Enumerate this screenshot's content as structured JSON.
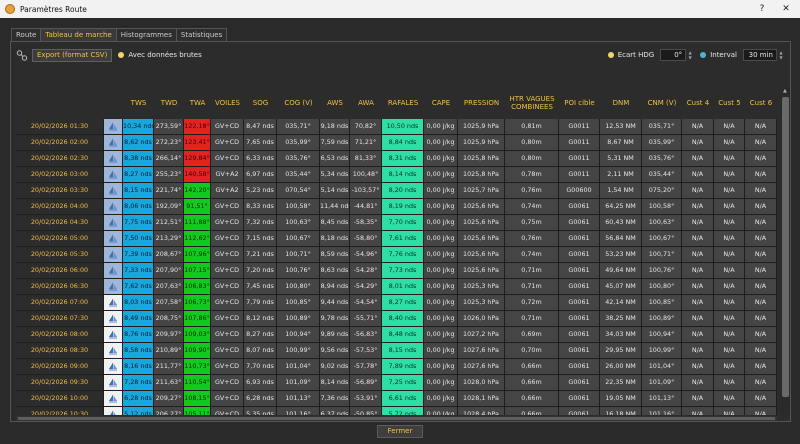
{
  "window": {
    "title": "Paramètres Route",
    "help": "?",
    "close": "✕"
  },
  "tabs": [
    "Route",
    "Tableau de marche",
    "Histogrammes",
    "Statistiques"
  ],
  "toolbar": {
    "export_label": "Export (format CSV)",
    "raw_data_label": "Avec données brutes",
    "ecart_label": "Ecart HDG",
    "ecart_value": "0°",
    "interval_label": "Interval",
    "interval_value": "30 min"
  },
  "columns": [
    "",
    "",
    "TWS",
    "TWD",
    "TWA",
    "VOILES",
    "SOG",
    "COG (V)",
    "AWS",
    "AWA",
    "RAFALES",
    "CAPE",
    "PRESSION",
    "HTR VAGUES\nCOMBINEES",
    "POI cible",
    "DNM",
    "CNM (V)",
    "Cust 4",
    "Cust 5",
    "Cust 6"
  ],
  "rows": [
    {
      "date": "20/02/2026 01:30",
      "tws": "10,34 nds",
      "twd": "273,59°",
      "twa": "122,18°",
      "twa_red": true,
      "voiles": "GV+CD",
      "sog": "8,47 nds",
      "cog": "035,71°",
      "aws": "9,18 nds",
      "awa": "70,82°",
      "raf": "10,50 nds",
      "cape": "0,00 J/kg",
      "pres": "1025,9 hPa",
      "htr": "0,81m",
      "poi": "G0011",
      "dnm": "12,53 NM",
      "cnm": "035,71°",
      "c4": "N/A",
      "c5": "N/A",
      "c6": "N/A",
      "icon_light": false
    },
    {
      "date": "20/02/2026 02:00",
      "tws": "8,62 nds",
      "twd": "272,23°",
      "twa": "123,41°",
      "twa_red": true,
      "voiles": "GV+CD",
      "sog": "7,65 nds",
      "cog": "035,99°",
      "aws": "7,59 nds",
      "awa": "71,21°",
      "raf": "8,84 nds",
      "cape": "0,00 J/kg",
      "pres": "1025,9 hPa",
      "htr": "0,80m",
      "poi": "G0011",
      "dnm": "8,67 NM",
      "cnm": "035,99°",
      "c4": "N/A",
      "c5": "N/A",
      "c6": "N/A",
      "icon_light": false
    },
    {
      "date": "20/02/2026 02:30",
      "tws": "8,38 nds",
      "twd": "266,14°",
      "twa": "129,84°",
      "twa_red": true,
      "voiles": "GV+CD",
      "sog": "6,33 nds",
      "cog": "035,76°",
      "aws": "6,53 nds",
      "awa": "81,33°",
      "raf": "8,31 nds",
      "cape": "0,00 J/kg",
      "pres": "1025,8 hPa",
      "htr": "0,80m",
      "poi": "G0011",
      "dnm": "5,31 NM",
      "cnm": "035,76°",
      "c4": "N/A",
      "c5": "N/A",
      "c6": "N/A",
      "icon_light": false
    },
    {
      "date": "20/02/2026 03:00",
      "tws": "8,27 nds",
      "twd": "255,23°",
      "twa": "140,58°",
      "twa_red": true,
      "voiles": "GV+A2",
      "sog": "6,97 nds",
      "cog": "035,44°",
      "aws": "5,34 nds",
      "awa": "100,48°",
      "raf": "8,14 nds",
      "cape": "0,00 J/kg",
      "pres": "1025,8 hPa",
      "htr": "0,78m",
      "poi": "G0011",
      "dnm": "2,11 NM",
      "cnm": "035,44°",
      "c4": "N/A",
      "c5": "N/A",
      "c6": "N/A",
      "icon_light": false
    },
    {
      "date": "20/02/2026 03:30",
      "tws": "8,15 nds",
      "twd": "221,74°",
      "twa": "142,20°",
      "twa_red": false,
      "voiles": "GV+A2",
      "sog": "5,23 nds",
      "cog": "070,54°",
      "aws": "5,14 nds",
      "awa": "-103,57°",
      "raf": "8,20 nds",
      "cape": "0,00 J/kg",
      "pres": "1025,7 hPa",
      "htr": "0,76m",
      "poi": "G00600",
      "dnm": "1,54 NM",
      "cnm": "075,20°",
      "c4": "N/A",
      "c5": "N/A",
      "c6": "N/A",
      "icon_light": false
    },
    {
      "date": "20/02/2026 04:00",
      "tws": "8,06 nds",
      "twd": "192,09°",
      "twa": "91,51°",
      "twa_red": false,
      "voiles": "GV+CD",
      "sog": "8,33 nds",
      "cog": "100,58°",
      "aws": "11,44 nds",
      "awa": "-44,81°",
      "raf": "8,19 nds",
      "cape": "0,00 J/kg",
      "pres": "1025,6 hPa",
      "htr": "0,74m",
      "poi": "G0061",
      "dnm": "64,25 NM",
      "cnm": "100,58°",
      "c4": "N/A",
      "c5": "N/A",
      "c6": "N/A",
      "icon_light": false
    },
    {
      "date": "20/02/2026 04:30",
      "tws": "7,75 nds",
      "twd": "212,51°",
      "twa": "111,88°",
      "twa_red": false,
      "voiles": "GV+CD",
      "sog": "7,32 nds",
      "cog": "100,63°",
      "aws": "8,45 nds",
      "awa": "-58,35°",
      "raf": "7,70 nds",
      "cape": "0,00 J/kg",
      "pres": "1025,6 hPa",
      "htr": "0,75m",
      "poi": "G0061",
      "dnm": "60,43 NM",
      "cnm": "100,63°",
      "c4": "N/A",
      "c5": "N/A",
      "c6": "N/A",
      "icon_light": false
    },
    {
      "date": "20/02/2026 05:00",
      "tws": "7,50 nds",
      "twd": "213,29°",
      "twa": "112,62°",
      "twa_red": false,
      "voiles": "GV+CD",
      "sog": "7,15 nds",
      "cog": "100,67°",
      "aws": "8,18 nds",
      "awa": "-58,80°",
      "raf": "7,61 nds",
      "cape": "0,00 J/kg",
      "pres": "1025,6 hPa",
      "htr": "0,76m",
      "poi": "G0061",
      "dnm": "56,84 NM",
      "cnm": "100,67°",
      "c4": "N/A",
      "c5": "N/A",
      "c6": "N/A",
      "icon_light": false
    },
    {
      "date": "20/02/2026 05:30",
      "tws": "7,39 nds",
      "twd": "208,67°",
      "twa": "107,96°",
      "twa_red": false,
      "voiles": "GV+CD",
      "sog": "7,21 nds",
      "cog": "100,71°",
      "aws": "8,59 nds",
      "awa": "-54,96°",
      "raf": "7,76 nds",
      "cape": "0,00 J/kg",
      "pres": "1025,6 hPa",
      "htr": "0,74m",
      "poi": "G0061",
      "dnm": "53,23 NM",
      "cnm": "100,71°",
      "c4": "N/A",
      "c5": "N/A",
      "c6": "N/A",
      "icon_light": false
    },
    {
      "date": "20/02/2026 06:00",
      "tws": "7,33 nds",
      "twd": "207,90°",
      "twa": "107,15°",
      "twa_red": false,
      "voiles": "GV+CD",
      "sog": "7,20 nds",
      "cog": "100,76°",
      "aws": "8,63 nds",
      "awa": "-54,28°",
      "raf": "7,73 nds",
      "cape": "0,00 J/kg",
      "pres": "1025,6 hPa",
      "htr": "0,71m",
      "poi": "G0061",
      "dnm": "49,64 NM",
      "cnm": "100,76°",
      "c4": "N/A",
      "c5": "N/A",
      "c6": "N/A",
      "icon_light": false
    },
    {
      "date": "20/02/2026 06:30",
      "tws": "7,62 nds",
      "twd": "207,63°",
      "twa": "106,83°",
      "twa_red": false,
      "voiles": "GV+CD",
      "sog": "7,45 nds",
      "cog": "100,80°",
      "aws": "8,94 nds",
      "awa": "-54,29°",
      "raf": "8,01 nds",
      "cape": "0,00 J/kg",
      "pres": "1025,3 hPa",
      "htr": "0,71m",
      "poi": "G0061",
      "dnm": "45,07 NM",
      "cnm": "100,80°",
      "c4": "N/A",
      "c5": "N/A",
      "c6": "N/A",
      "icon_light": false
    },
    {
      "date": "20/02/2026 07:00",
      "tws": "8,03 nds",
      "twd": "207,58°",
      "twa": "106,73°",
      "twa_red": false,
      "voiles": "GV+CD",
      "sog": "7,79 nds",
      "cog": "100,85°",
      "aws": "9,44 nds",
      "awa": "-54,54°",
      "raf": "8,27 nds",
      "cape": "0,00 J/kg",
      "pres": "1025,3 hPa",
      "htr": "0,72m",
      "poi": "G0061",
      "dnm": "42,14 NM",
      "cnm": "100,85°",
      "c4": "N/A",
      "c5": "N/A",
      "c6": "N/A",
      "icon_light": true
    },
    {
      "date": "20/02/2026 07:30",
      "tws": "8,49 nds",
      "twd": "208,75°",
      "twa": "107,86°",
      "twa_red": false,
      "voiles": "GV+CD",
      "sog": "8,12 nds",
      "cog": "100,89°",
      "aws": "9,78 nds",
      "awa": "-55,71°",
      "raf": "8,40 nds",
      "cape": "0,00 J/kg",
      "pres": "1026,0 hPa",
      "htr": "0,71m",
      "poi": "G0061",
      "dnm": "38,25 NM",
      "cnm": "100,89°",
      "c4": "N/A",
      "c5": "N/A",
      "c6": "N/A",
      "icon_light": true
    },
    {
      "date": "20/02/2026 08:00",
      "tws": "8,76 nds",
      "twd": "209,97°",
      "twa": "109,03°",
      "twa_red": false,
      "voiles": "GV+CD",
      "sog": "8,27 nds",
      "cog": "100,94°",
      "aws": "9,89 nds",
      "awa": "-56,83°",
      "raf": "8,48 nds",
      "cape": "0,00 J/kg",
      "pres": "1027,2 hPa",
      "htr": "0,69m",
      "poi": "G0061",
      "dnm": "34,03 NM",
      "cnm": "100,94°",
      "c4": "N/A",
      "c5": "N/A",
      "c6": "N/A",
      "icon_light": true
    },
    {
      "date": "20/02/2026 08:30",
      "tws": "8,58 nds",
      "twd": "210,89°",
      "twa": "109,90°",
      "twa_red": false,
      "voiles": "GV+CD",
      "sog": "8,07 nds",
      "cog": "100,99°",
      "aws": "9,56 nds",
      "awa": "-57,53°",
      "raf": "8,15 nds",
      "cape": "0,00 J/kg",
      "pres": "1027,6 hPa",
      "htr": "0,70m",
      "poi": "G0061",
      "dnm": "29,95 NM",
      "cnm": "100,99°",
      "c4": "N/A",
      "c5": "N/A",
      "c6": "N/A",
      "icon_light": true
    },
    {
      "date": "20/02/2026 09:00",
      "tws": "8,16 nds",
      "twd": "211,77°",
      "twa": "110,73°",
      "twa_red": false,
      "voiles": "GV+CD",
      "sog": "7,70 nds",
      "cog": "101,04°",
      "aws": "9,02 nds",
      "awa": "-57,78°",
      "raf": "7,89 nds",
      "cape": "0,00 J/kg",
      "pres": "1027,6 hPa",
      "htr": "0,66m",
      "poi": "G0061",
      "dnm": "26,00 NM",
      "cnm": "101,04°",
      "c4": "N/A",
      "c5": "N/A",
      "c6": "N/A",
      "icon_light": true
    },
    {
      "date": "20/02/2026 09:30",
      "tws": "7,28 nds",
      "twd": "211,63°",
      "twa": "110,54°",
      "twa_red": false,
      "voiles": "GV+CD",
      "sog": "6,93 nds",
      "cog": "101,09°",
      "aws": "8,14 nds",
      "awa": "-56,89°",
      "raf": "7,25 nds",
      "cape": "0,00 J/kg",
      "pres": "1028,0 hPa",
      "htr": "0,66m",
      "poi": "G0061",
      "dnm": "22,35 NM",
      "cnm": "101,09°",
      "c4": "N/A",
      "c5": "N/A",
      "c6": "N/A",
      "icon_light": true
    },
    {
      "date": "20/02/2026 10:00",
      "tws": "6,28 nds",
      "twd": "209,27°",
      "twa": "108,15°",
      "twa_red": false,
      "voiles": "GV+CD",
      "sog": "6,28 nds",
      "cog": "101,13°",
      "aws": "7,36 nds",
      "awa": "-53,91°",
      "raf": "6,61 nds",
      "cape": "0,00 J/kg",
      "pres": "1028,1 hPa",
      "htr": "0,66m",
      "poi": "G0061",
      "dnm": "19,05 NM",
      "cnm": "101,13°",
      "c4": "N/A",
      "c5": "N/A",
      "c6": "N/A",
      "icon_light": true
    },
    {
      "date": "20/02/2026 10:30",
      "tws": "5,12 nds",
      "twd": "206,27°",
      "twa": "105,11°",
      "twa_red": false,
      "voiles": "GV+CD",
      "sog": "5,35 nds",
      "cog": "101,16°",
      "aws": "6,37 nds",
      "awa": "-50,85°",
      "raf": "5,72 nds",
      "cape": "0,00 J/kg",
      "pres": "1028,4 hPa",
      "htr": "0,66m",
      "poi": "G0061",
      "dnm": "16,18 NM",
      "cnm": "101,16°",
      "c4": "N/A",
      "c5": "N/A",
      "c6": "N/A",
      "icon_light": true
    },
    {
      "date": "20/02/2026 11:00",
      "tws": "4,12 nds",
      "twd": "201,23°",
      "twa": "100,05°",
      "twa_red": false,
      "voiles": "GV+CD",
      "sog": "4,71 nds",
      "cog": "101,19°",
      "aws": "5,69 nds",
      "awa": "-45,52°",
      "raf": "4,96 nds",
      "cape": "0,00 J/kg",
      "pres": "1028,1 hPa",
      "htr": "0,66m",
      "poi": "G0061",
      "dnm": "13,72 NM",
      "cnm": "101,19°",
      "c4": "N/A",
      "c5": "N/A",
      "c6": "N/A",
      "icon_light": true
    }
  ],
  "close_button": "Fermer",
  "colors": {
    "accent": "#f3c140",
    "tws": "#19a6dc",
    "twa_red": "#e52222",
    "twa_green": "#12c91d",
    "rafales": "#2edea4",
    "cell": "#454545"
  }
}
